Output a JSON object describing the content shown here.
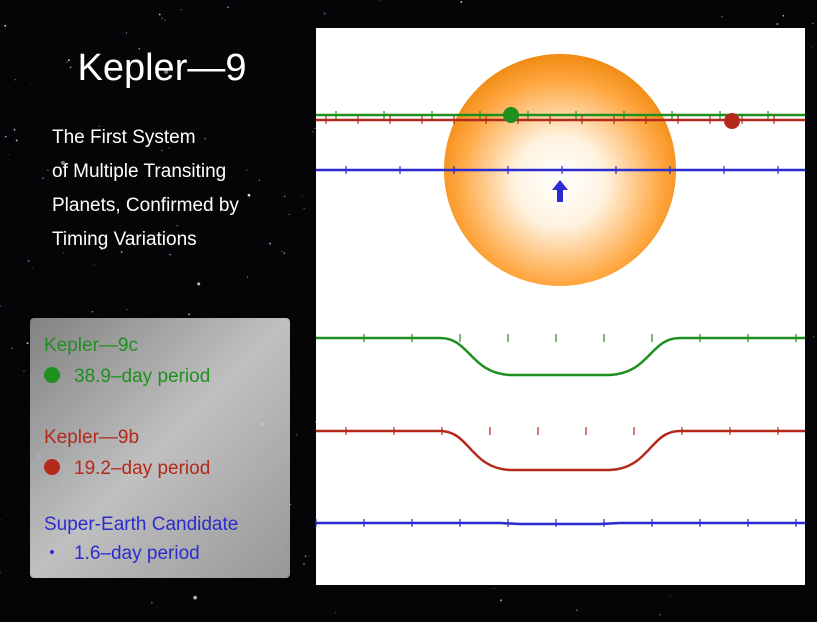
{
  "title": "Kepler—9",
  "subtitle": [
    "The First System",
    "of Multiple Transiting",
    "Planets, Confirmed by",
    "Timing Variations"
  ],
  "legend": [
    {
      "name": "Kepler—9c",
      "period": "38.9–day period",
      "color": "#1f8f1f"
    },
    {
      "name": "Kepler—9b",
      "period": "19.2–day period",
      "color": "#b3291b"
    },
    {
      "name": "Super-Earth Candidate",
      "period": "1.6–day period",
      "color": "#2b2bd0"
    }
  ]
}
